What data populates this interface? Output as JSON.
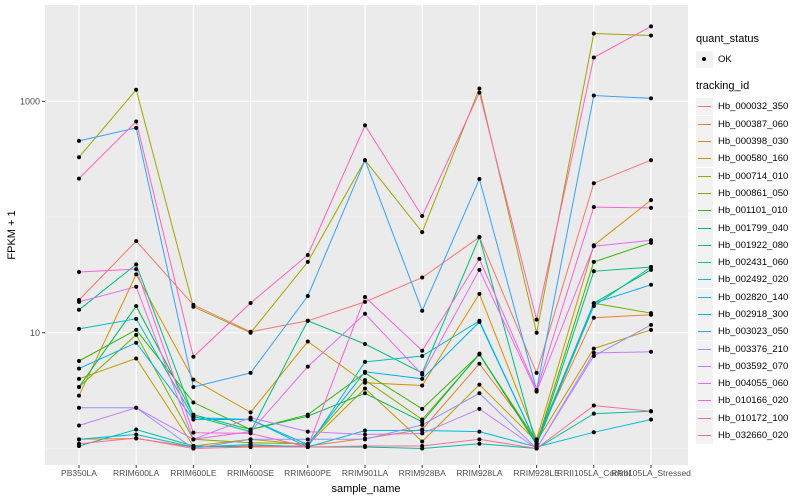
{
  "chart_data": {
    "type": "line",
    "xlabel": "sample_name",
    "ylabel": "FPKM + 1",
    "y_scale": "log10",
    "ylim": [
      0.72,
      6800
    ],
    "y_ticks": [
      {
        "value": 10,
        "label": "10"
      },
      {
        "value": 1000,
        "label": "1000"
      }
    ],
    "grid": true,
    "legend_position": "right",
    "categories": [
      "PB350LA",
      "RRIM600LA",
      "RRIM600LE",
      "RRIM600SE",
      "RRIM600PE",
      "RRIM901LA",
      "RRIM928BA",
      "RRIM928LA",
      "RRIM928LE",
      "RRII105LA_Control",
      "RRII105LA_Stressed"
    ],
    "shape_legend": {
      "title": "quant_status",
      "entries": [
        "OK"
      ]
    },
    "color_legend_title": "tracking_id",
    "series": [
      {
        "name": "Hb_000032_350",
        "color": "#F8766D",
        "values": [
          19.2,
          62,
          17.4,
          10.2,
          12.7,
          18.5,
          30,
          67,
          4.5,
          196,
          310
        ]
      },
      {
        "name": "Hb_000387_060",
        "color": "#EA8331",
        "values": [
          1.2,
          1.22,
          1.03,
          1.05,
          1.05,
          1.22,
          1.46,
          5.4,
          1.2,
          13.5,
          14.3
        ]
      },
      {
        "name": "Hb_000398_030",
        "color": "#D89000",
        "values": [
          2.86,
          32,
          3.94,
          2.05,
          8.4,
          3.7,
          3.5,
          21.7,
          1.2,
          57,
          140
        ]
      },
      {
        "name": "Hb_000580_160",
        "color": "#C09B00",
        "values": [
          4.0,
          6.0,
          1.05,
          1.2,
          1.08,
          3.3,
          1.15,
          3.56,
          1.15,
          7.3,
          10.6
        ]
      },
      {
        "name": "Hb_000714_010",
        "color": "#A3A500",
        "values": [
          329,
          1260,
          16.8,
          10,
          41,
          310,
          74,
          1290,
          10,
          3856,
          3707
        ]
      },
      {
        "name": "Hb_000861_050",
        "color": "#7CAE00",
        "values": [
          3.4,
          9.6,
          1.2,
          1.12,
          1.1,
          3.9,
          1.78,
          6.5,
          1.15,
          18,
          14.8
        ]
      },
      {
        "name": "Hb_001101_010",
        "color": "#39B600",
        "values": [
          5.7,
          10.6,
          2.5,
          1.46,
          1.96,
          4.5,
          2.2,
          6.5,
          1.1,
          41,
          60
        ]
      },
      {
        "name": "Hb_001799_040",
        "color": "#00BB4E",
        "values": [
          3.4,
          17,
          1.96,
          1.46,
          1.9,
          3.0,
          1.7,
          6.6,
          1.08,
          18,
          35
        ]
      },
      {
        "name": "Hb_001922_080",
        "color": "#00BF7D",
        "values": [
          15.8,
          39,
          1.9,
          1.4,
          12.7,
          8.0,
          4.5,
          67,
          1.05,
          34,
          37
        ]
      },
      {
        "name": "Hb_002431_060",
        "color": "#00C1A3",
        "values": [
          1.05,
          1.46,
          1.05,
          1.03,
          1.03,
          1.03,
          1.0,
          1.1,
          1.0,
          2.0,
          2.1
        ]
      },
      {
        "name": "Hb_002492_020",
        "color": "#00BFC4",
        "values": [
          10.8,
          13.2,
          1.85,
          1.78,
          1.03,
          5.6,
          6.3,
          12.7,
          1.1,
          17,
          37
        ]
      },
      {
        "name": "Hb_002820_140",
        "color": "#00BAE0",
        "values": [
          1.2,
          1.32,
          1.03,
          1.08,
          1.03,
          1.43,
          1.43,
          1.4,
          1.03,
          1.38,
          1.78
        ]
      },
      {
        "name": "Hb_002918_300",
        "color": "#00B0F6",
        "values": [
          4.9,
          8.2,
          1.78,
          1.78,
          1.08,
          4.6,
          4.0,
          12.4,
          1.1,
          18,
          26
        ]
      },
      {
        "name": "Hb_003023_050",
        "color": "#35A2FF",
        "values": [
          455,
          590,
          3.4,
          4.5,
          20.8,
          310,
          15.5,
          213,
          3.2,
          1123,
          1062
        ]
      },
      {
        "name": "Hb_003376_210",
        "color": "#9590FF",
        "values": [
          2.25,
          2.25,
          1.0,
          1.2,
          1.2,
          1.2,
          1.6,
          3.0,
          1.0,
          6.3,
          11.7
        ]
      },
      {
        "name": "Hb_003592_070",
        "color": "#C77CFF",
        "values": [
          1.58,
          2.25,
          1.2,
          1.85,
          1.4,
          1.32,
          1.35,
          2.2,
          1.0,
          6.7,
          6.85
        ]
      },
      {
        "name": "Hb_004055_060",
        "color": "#E76BF3",
        "values": [
          18.5,
          25,
          1.2,
          1.4,
          5.1,
          14.6,
          4.35,
          35,
          3.1,
          56,
          63
        ]
      },
      {
        "name": "Hb_010166_020",
        "color": "#FA62DB",
        "values": [
          33.5,
          35.5,
          1.37,
          1.35,
          1.03,
          20.4,
          7.0,
          43.5,
          3.2,
          122,
          120
        ]
      },
      {
        "name": "Hb_010172_100",
        "color": "#FF62BC",
        "values": [
          215,
          670,
          6.2,
          18.1,
          47,
          620,
          102,
          1190,
          13,
          2390,
          4440
        ]
      },
      {
        "name": "Hb_032660_020",
        "color": "#FF6C91",
        "values": [
          1.1,
          1.23,
          1.0,
          1.03,
          1.03,
          1.05,
          1.05,
          1.2,
          1.0,
          2.35,
          2.1
        ]
      }
    ]
  }
}
